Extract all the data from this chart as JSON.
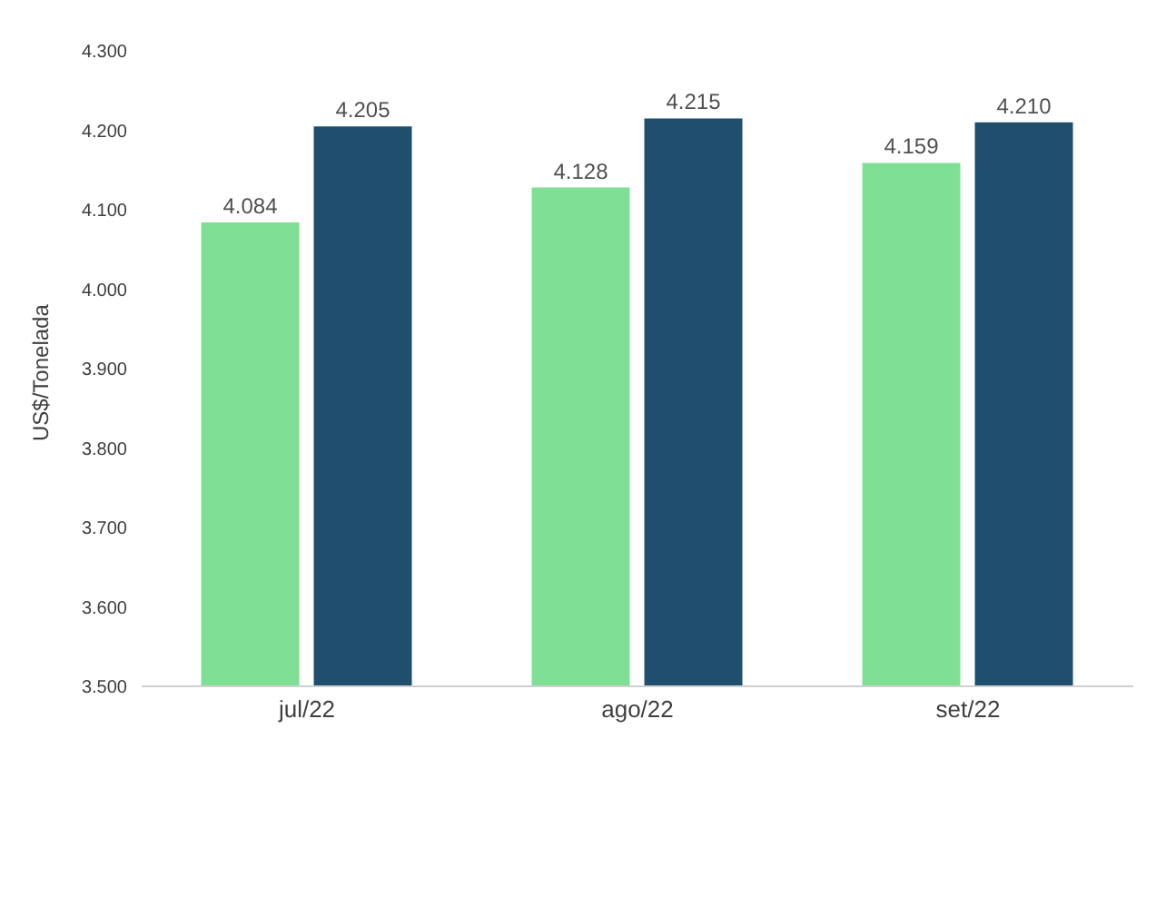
{
  "chart_data": {
    "type": "bar",
    "ylabel": "US$/Tonelada",
    "categories": [
      "jul/22",
      "ago/22",
      "set/22"
    ],
    "series": [
      {
        "color": "#7fe095",
        "values": [
          4084,
          4128,
          4159
        ],
        "value_labels": [
          "4.084",
          "4.128",
          "4.159"
        ]
      },
      {
        "color": "#1f4e6e",
        "values": [
          4205,
          4215,
          4210
        ],
        "value_labels": [
          "4.205",
          "4.215",
          "4.210"
        ]
      }
    ],
    "ylim": [
      3500,
      4300
    ],
    "yticks": [
      {
        "value": 3500,
        "label": "3.500"
      },
      {
        "value": 3600,
        "label": "3.600"
      },
      {
        "value": 3700,
        "label": "3.700"
      },
      {
        "value": 3800,
        "label": "3.800"
      },
      {
        "value": 3900,
        "label": "3.900"
      },
      {
        "value": 4000,
        "label": "4.000"
      },
      {
        "value": 4100,
        "label": "4.100"
      },
      {
        "value": 4200,
        "label": "4.200"
      },
      {
        "value": 4300,
        "label": "4.300"
      }
    ],
    "grid": false,
    "legend": false
  }
}
